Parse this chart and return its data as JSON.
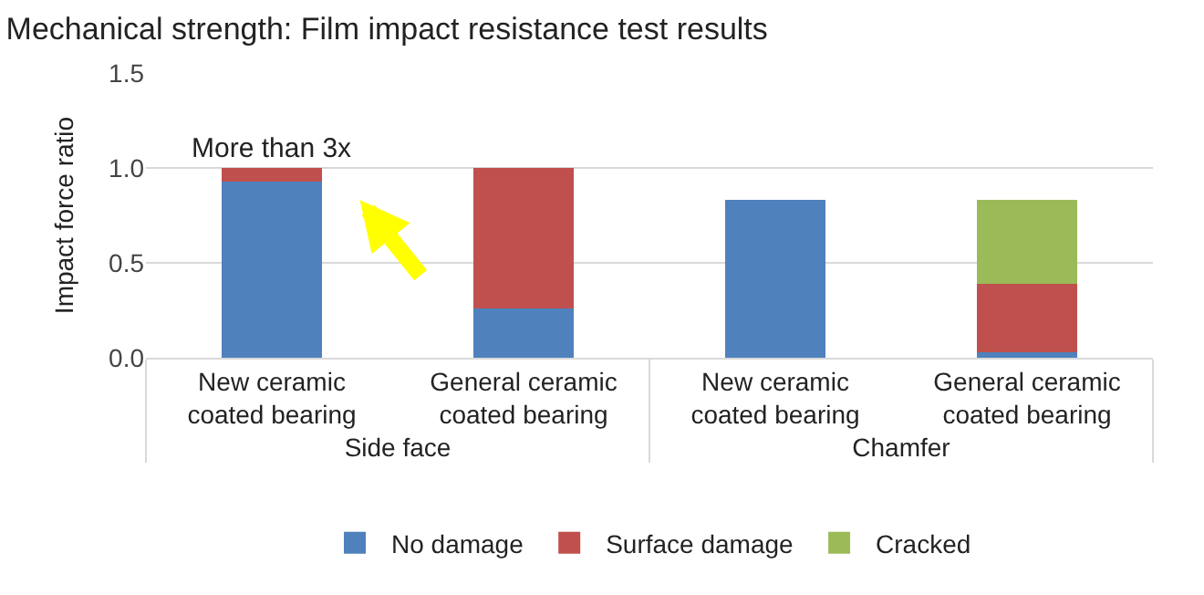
{
  "chart_data": {
    "type": "bar",
    "title": "Mechanical strength: Film impact resistance test results",
    "ylabel": "Impact force ratio",
    "categories": [
      "New ceramic coated bearing",
      "General ceramic coated bearing",
      "New ceramic coated bearing",
      "General ceramic coated bearing"
    ],
    "series": [
      {
        "name": "No damage",
        "color": "#4f81bd",
        "values": [
          0.93,
          0.26,
          0.83,
          0.03
        ]
      },
      {
        "name": "Surface damage",
        "color": "#c0504d",
        "values": [
          0.07,
          0.74,
          0,
          0.36
        ]
      },
      {
        "name": "Cracked",
        "color": "#9bbb59",
        "values": [
          0,
          0,
          0,
          0.44
        ]
      }
    ],
    "stacked": true,
    "ylim": [
      0,
      1.5
    ],
    "yticks": [
      {
        "value": 0,
        "label": "0.0"
      },
      {
        "value": 0.5,
        "label": "0.5"
      },
      {
        "value": 1,
        "label": "1.0"
      },
      {
        "value": 1.5,
        "label": "1.5"
      }
    ],
    "grid": "y",
    "legend": "bottom",
    "annotations": [
      "Side face",
      "Chamfer",
      {
        "text": "More than 3x",
        "x": "New ceramic coated bearing",
        "y": 1.0
      }
    ]
  }
}
